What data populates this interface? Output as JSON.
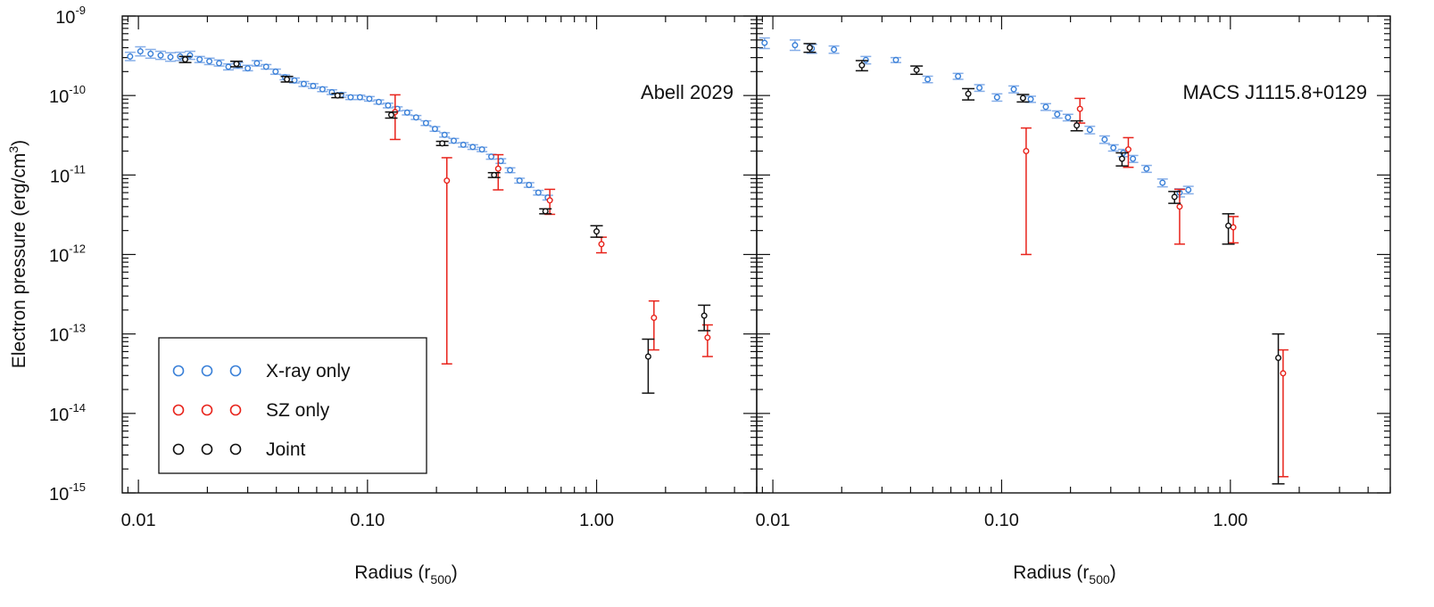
{
  "chart_data": {
    "type": "scatter",
    "x_scale": "log",
    "y_scale": "log",
    "xlabel": "Radius (r",
    "xlabel_sub": "500",
    "xlabel_close": ")",
    "ylabel": "Electron pressure (erg/cm",
    "ylabel_sup": "3",
    "ylabel_close": ")",
    "ylim": [
      1e-15,
      1e-09
    ],
    "y_ticks": [
      {
        "base": "10",
        "exp": "-9"
      },
      {
        "base": "10",
        "exp": "-10"
      },
      {
        "base": "10",
        "exp": "-11"
      },
      {
        "base": "10",
        "exp": "-12"
      },
      {
        "base": "10",
        "exp": "-13"
      },
      {
        "base": "10",
        "exp": "-14"
      },
      {
        "base": "10",
        "exp": "-15"
      }
    ],
    "x_ticks": [
      "0.01",
      "0.10",
      "1.00"
    ],
    "legend": {
      "placement": "lower-left (left panel)",
      "entries": [
        {
          "label": "X-ray only",
          "color": "#3a80d8"
        },
        {
          "label": "SZ only",
          "color": "#e8231b"
        },
        {
          "label": "Joint",
          "color": "#111111"
        }
      ]
    },
    "colors": {
      "xray": "#3a80d8",
      "xray_bar": "#86aee8",
      "sz": "#e8231b",
      "joint": "#111111"
    },
    "panels": [
      {
        "title": "Abell 2029",
        "xlim": [
          0.0085,
          5.0
        ],
        "series": [
          {
            "name": "X-ray only",
            "points": [
              [
                0.0092,
                3.1e-10,
                2.75e-10,
                3.5e-10
              ],
              [
                0.0102,
                3.6e-10,
                3.15e-10,
                4.1e-10
              ],
              [
                0.0113,
                3.35e-10,
                2.95e-10,
                3.8e-10
              ],
              [
                0.0125,
                3.2e-10,
                2.85e-10,
                3.6e-10
              ],
              [
                0.0138,
                3.05e-10,
                2.7e-10,
                3.45e-10
              ],
              [
                0.0152,
                3.1e-10,
                2.75e-10,
                3.5e-10
              ],
              [
                0.0168,
                3.2e-10,
                2.85e-10,
                3.6e-10
              ],
              [
                0.0185,
                2.85e-10,
                2.6e-10,
                3.1e-10
              ],
              [
                0.0204,
                2.7e-10,
                2.45e-10,
                2.95e-10
              ],
              [
                0.0225,
                2.55e-10,
                2.35e-10,
                2.8e-10
              ],
              [
                0.0247,
                2.3e-10,
                2.1e-10,
                2.5e-10
              ],
              [
                0.0272,
                2.4e-10,
                2.2e-10,
                2.6e-10
              ],
              [
                0.03,
                2.2e-10,
                2.05e-10,
                2.4e-10
              ],
              [
                0.0329,
                2.55e-10,
                2.35e-10,
                2.75e-10
              ],
              [
                0.0361,
                2.3e-10,
                2.15e-10,
                2.45e-10
              ],
              [
                0.0397,
                2e-10,
                1.85e-10,
                2.15e-10
              ],
              [
                0.0436,
                1.7e-10,
                1.58e-10,
                1.82e-10
              ],
              [
                0.048,
                1.55e-10,
                1.44e-10,
                1.66e-10
              ],
              [
                0.0527,
                1.4e-10,
                1.3e-10,
                1.5e-10
              ],
              [
                0.0579,
                1.32e-10,
                1.23e-10,
                1.41e-10
              ],
              [
                0.0636,
                1.2e-10,
                1.12e-10,
                1.28e-10
              ],
              [
                0.0699,
                1.1e-10,
                1.03e-10,
                1.18e-10
              ],
              [
                0.0768,
                1.02e-10,
                9.5e-11,
                1.09e-10
              ],
              [
                0.0844,
                9.5e-11,
                8.9e-11,
                1.01e-10
              ],
              [
                0.0927,
                9.5e-11,
                8.9e-11,
                1.01e-10
              ],
              [
                0.1019,
                9.1e-11,
                8.5e-11,
                9.7e-11
              ],
              [
                0.112,
                8.3e-11,
                7.8e-11,
                8.8e-11
              ],
              [
                0.123,
                7.5e-11,
                7e-11,
                8e-11
              ],
              [
                0.135,
                6.8e-11,
                6.4e-11,
                7.2e-11
              ],
              [
                0.149,
                6.1e-11,
                5.7e-11,
                6.5e-11
              ],
              [
                0.163,
                5.3e-11,
                5e-11,
                5.6e-11
              ],
              [
                0.18,
                4.5e-11,
                4.2e-11,
                4.8e-11
              ],
              [
                0.197,
                3.8e-11,
                3.55e-11,
                4.05e-11
              ],
              [
                0.217,
                3.2e-11,
                3e-11,
                3.4e-11
              ],
              [
                0.238,
                2.7e-11,
                2.52e-11,
                2.88e-11
              ],
              [
                0.262,
                2.4e-11,
                2.25e-11,
                2.55e-11
              ],
              [
                0.288,
                2.25e-11,
                2.1e-11,
                2.4e-11
              ],
              [
                0.316,
                2.1e-11,
                1.97e-11,
                2.23e-11
              ],
              [
                0.347,
                1.7e-11,
                1.58e-11,
                1.82e-11
              ],
              [
                0.382,
                1.5e-11,
                1.4e-11,
                1.6e-11
              ],
              [
                0.419,
                1.15e-11,
                1.07e-11,
                1.23e-11
              ],
              [
                0.461,
                8.5e-12,
                7.9e-12,
                9.1e-12
              ],
              [
                0.507,
                7.5e-12,
                7e-12,
                8e-12
              ],
              [
                0.557,
                6e-12,
                5.6e-12,
                6.4e-12
              ],
              [
                0.612,
                5.2e-12,
                4.85e-12,
                5.55e-12
              ]
            ]
          },
          {
            "name": "SZ only",
            "points": [
              [
                0.132,
                6.2e-11,
                2.8e-11,
                1.02e-10
              ],
              [
                0.222,
                8.5e-12,
                4.2e-14,
                1.65e-11
              ],
              [
                0.372,
                1.2e-11,
                6.5e-12,
                1.8e-11
              ],
              [
                0.625,
                4.8e-12,
                3.2e-12,
                6.6e-12
              ],
              [
                1.05,
                1.35e-12,
                1.05e-12,
                1.65e-12
              ],
              [
                1.78,
                1.6e-13,
                6.3e-14,
                2.6e-13
              ],
              [
                3.05,
                9e-14,
                5.2e-14,
                1.3e-13
              ]
            ]
          },
          {
            "name": "Joint",
            "points": [
              [
                0.016,
                2.85e-10,
                2.6e-10,
                3.1e-10
              ],
              [
                0.0268,
                2.5e-10,
                2.3e-10,
                2.7e-10
              ],
              [
                0.0445,
                1.6e-10,
                1.48e-10,
                1.74e-10
              ],
              [
                0.074,
                1e-10,
                9.4e-11,
                1.06e-10
              ],
              [
                0.127,
                5.7e-11,
                5.2e-11,
                6.2e-11
              ],
              [
                0.212,
                2.5e-11,
                2.35e-11,
                2.65e-11
              ],
              [
                0.357,
                1e-11,
                9.3e-12,
                1.07e-11
              ],
              [
                0.598,
                3.5e-12,
                3.25e-12,
                3.75e-12
              ],
              [
                1.0,
                1.95e-12,
                1.65e-12,
                2.3e-12
              ],
              [
                1.68,
                5.2e-14,
                1.8e-14,
                8.6e-14
              ],
              [
                2.95,
                1.7e-13,
                1.1e-13,
                2.3e-13
              ]
            ]
          }
        ]
      },
      {
        "title": "MACS J1115.8+0129",
        "xlim": [
          0.0085,
          5.0
        ],
        "series": [
          {
            "name": "X-ray only",
            "points": [
              [
                0.0092,
                4.6e-10,
                3.9e-10,
                5.3e-10
              ],
              [
                0.0125,
                4.3e-10,
                3.7e-10,
                5e-10
              ],
              [
                0.0148,
                3.9e-10,
                3.4e-10,
                4.4e-10
              ],
              [
                0.0185,
                3.8e-10,
                3.4e-10,
                4.2e-10
              ],
              [
                0.0255,
                2.8e-10,
                2.5e-10,
                3.1e-10
              ],
              [
                0.0345,
                2.8e-10,
                2.6e-10,
                3e-10
              ],
              [
                0.0475,
                1.6e-10,
                1.45e-10,
                1.75e-10
              ],
              [
                0.0645,
                1.75e-10,
                1.6e-10,
                1.9e-10
              ],
              [
                0.08,
                1.25e-10,
                1.13e-10,
                1.37e-10
              ],
              [
                0.0955,
                9.5e-11,
                8.5e-11,
                1.05e-10
              ],
              [
                0.113,
                1.2e-10,
                1.08e-10,
                1.32e-10
              ],
              [
                0.134,
                9e-11,
                8.2e-11,
                9.8e-11
              ],
              [
                0.156,
                7.2e-11,
                6.5e-11,
                7.9e-11
              ],
              [
                0.175,
                5.8e-11,
                5.2e-11,
                6.4e-11
              ],
              [
                0.195,
                5.3e-11,
                4.8e-11,
                5.8e-11
              ],
              [
                0.243,
                3.7e-11,
                3.3e-11,
                4.1e-11
              ],
              [
                0.282,
                2.8e-11,
                2.5e-11,
                3.1e-11
              ],
              [
                0.308,
                2.2e-11,
                2e-11,
                2.4e-11
              ],
              [
                0.34,
                1.9e-11,
                1.7e-11,
                2.1e-11
              ],
              [
                0.375,
                1.6e-11,
                1.44e-11,
                1.76e-11
              ],
              [
                0.43,
                1.2e-11,
                1.08e-11,
                1.32e-11
              ],
              [
                0.505,
                8e-12,
                7.1e-12,
                8.9e-12
              ],
              [
                0.6,
                6e-12,
                5.3e-12,
                6.7e-12
              ],
              [
                0.655,
                6.5e-12,
                5.8e-12,
                7.2e-12
              ]
            ]
          },
          {
            "name": "SZ only",
            "points": [
              [
                0.128,
                2e-11,
                1e-12,
                3.9e-11
              ],
              [
                0.22,
                6.8e-11,
                4.5e-11,
                9.2e-11
              ],
              [
                0.358,
                2.1e-11,
                1.25e-11,
                2.95e-11
              ],
              [
                0.6,
                4e-12,
                1.35e-12,
                6.6e-12
              ],
              [
                1.03,
                2.2e-12,
                1.4e-12,
                3e-12
              ],
              [
                1.7,
                3.2e-14,
                1.6e-15,
                6.3e-14
              ]
            ]
          },
          {
            "name": "Joint",
            "points": [
              [
                0.0145,
                4e-10,
                3.5e-10,
                4.5e-10
              ],
              [
                0.0245,
                2.4e-10,
                2.05e-10,
                2.75e-10
              ],
              [
                0.0425,
                2.1e-10,
                1.85e-10,
                2.35e-10
              ],
              [
                0.0715,
                1.05e-10,
                8.8e-11,
                1.22e-10
              ],
              [
                0.124,
                9.3e-11,
                8.3e-11,
                1.03e-10
              ],
              [
                0.213,
                4.2e-11,
                3.6e-11,
                4.8e-11
              ],
              [
                0.336,
                1.6e-11,
                1.3e-11,
                1.9e-11
              ],
              [
                0.57,
                5.3e-12,
                4.4e-12,
                6.2e-12
              ],
              [
                0.98,
                2.3e-12,
                1.35e-12,
                3.25e-12
              ],
              [
                1.62,
                5e-14,
                1.3e-15,
                1e-13
              ]
            ]
          }
        ]
      }
    ]
  }
}
